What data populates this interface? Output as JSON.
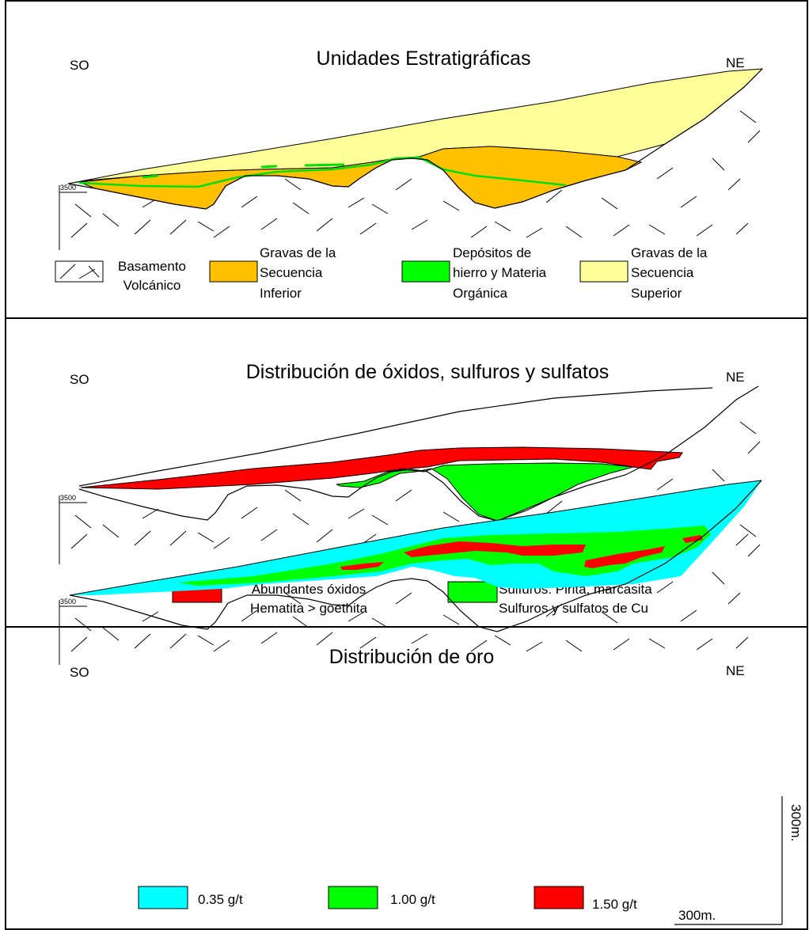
{
  "panels": [
    {
      "title": "Unidades Estratigráficas",
      "left_dir": "SO",
      "right_dir": "NE",
      "elevation_label": "3500",
      "legend": [
        {
          "lines": [
            "Basamento",
            "Volcánico"
          ],
          "swatch": "basement"
        },
        {
          "lines": [
            "Gravas de la",
            "Secuencia",
            "Inferior"
          ],
          "color": "#FFC000"
        },
        {
          "lines": [
            "Depósitos de",
            "hierro y Materia",
            "Orgánica"
          ],
          "color": "#00FF00"
        },
        {
          "lines": [
            "Gravas de la",
            "Secuencia",
            "Superior"
          ],
          "color": "#FFFF99"
        }
      ]
    },
    {
      "title": "Distribución de óxidos, sulfuros y sulfatos",
      "left_dir": "SO",
      "right_dir": "NE",
      "elevation_label": "3500",
      "legend": [
        {
          "lines": [
            "Abundantes óxidos",
            "Hematita > goethita"
          ],
          "color": "#FF0000"
        },
        {
          "lines": [
            "Sulfuros: Pirita, marcasita",
            "Sulfuros y sulfatos de Cu"
          ],
          "color": "#00FF00"
        }
      ]
    },
    {
      "title": "Distribución de oro",
      "left_dir": "SO",
      "right_dir": "NE",
      "elevation_label": "3500",
      "legend": [
        {
          "lines": [
            "0.35 g/t"
          ],
          "color": "#00FFFF"
        },
        {
          "lines": [
            "1.00 g/t"
          ],
          "color": "#00FF00"
        },
        {
          "lines": [
            "1.50 g/t"
          ],
          "color": "#FF0000"
        }
      ],
      "scale_vertical": "300m.",
      "scale_horizontal": "300m."
    }
  ]
}
